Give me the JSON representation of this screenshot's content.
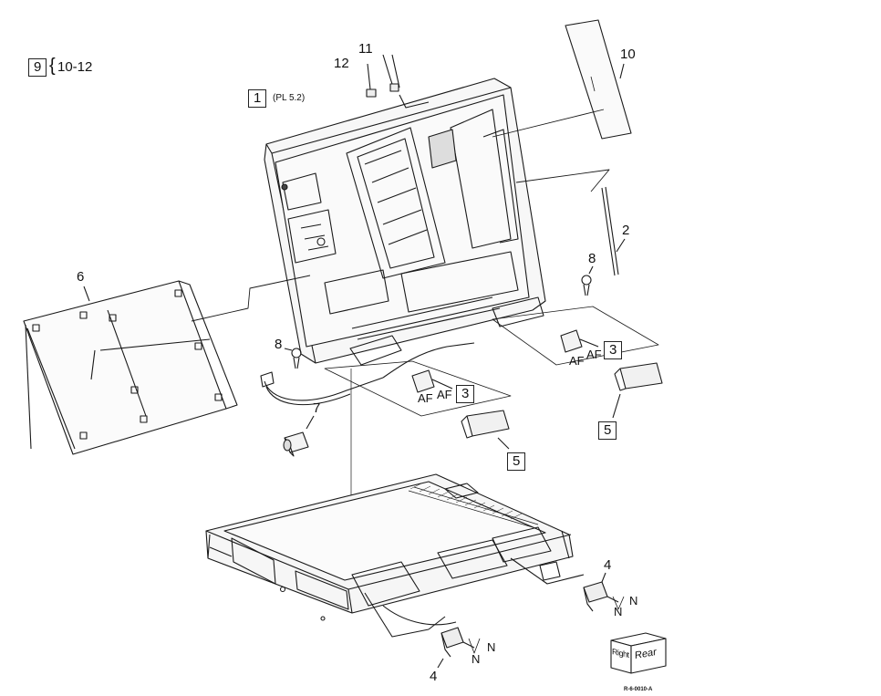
{
  "group_callout": {
    "box_label": "9",
    "brace": "{",
    "range_text": "10-12"
  },
  "callouts": {
    "c1": "1",
    "c1_ref": "(PL 5.2)",
    "c2": "2",
    "c3a": "3",
    "c3b": "3",
    "c4a": "4",
    "c4b": "4",
    "c5a": "5",
    "c5b": "5",
    "c6": "6",
    "c7": "7",
    "c8a": "8",
    "c8b": "8",
    "c10": "10",
    "c11": "11",
    "c12": "12"
  },
  "fastener_marks": {
    "af1": "AF",
    "af2": "AF",
    "af3": "AF",
    "af4": "AF",
    "n1": "N",
    "n2": "N",
    "n3": "N",
    "n4": "N"
  },
  "orientation_cube": {
    "left_face": "Right",
    "front_face": "Rear"
  },
  "figure_id": "R-6-0010-A"
}
